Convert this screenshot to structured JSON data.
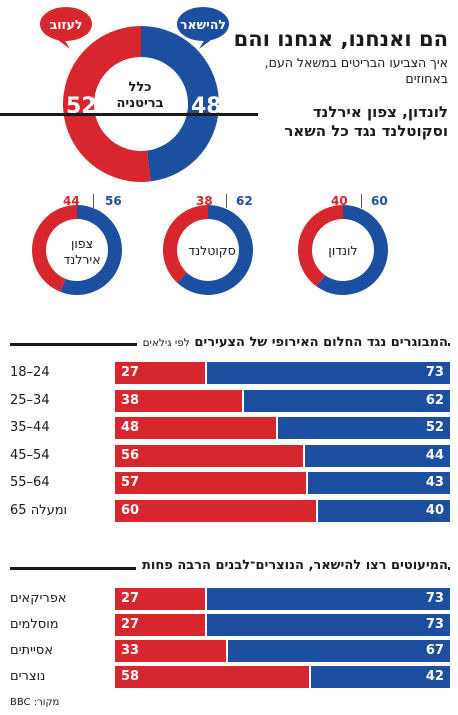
{
  "header": {
    "title": "הם ואנחנו, אנחנו והם",
    "subtitle": "איך הצביעו הבריטים במשאל העם, באחוזים"
  },
  "colors": {
    "stay": "#1d4fa0",
    "leave": "#d8262e"
  },
  "bubbles": {
    "stay_label": "להישאר",
    "leave_label": "לעזוב"
  },
  "sections": {
    "regions_title": "לונדון, צפון אירלנד וסקוטלנד נגד כל השאר",
    "age_title": "המבוגרים נגד החלום האירופי של הצעירים",
    "age_title_small": "לפי גילאים",
    "minority_title": "המיעוטים רצו להישאר, הנוצרים־לבנים הרבה פחות"
  },
  "source": "מקור: BBC",
  "chart_data": [
    {
      "type": "pie",
      "label": "כלל בריטניה",
      "label_lines": [
        "כלל",
        "בריטניה"
      ],
      "stay": 48,
      "leave": 52
    },
    {
      "type": "pie",
      "rings": [
        {
          "label_lines": [
            "לונדון"
          ],
          "stay": 60,
          "leave": 40
        },
        {
          "label_lines": [
            "סקוטלנד"
          ],
          "stay": 62,
          "leave": 38
        },
        {
          "label_lines": [
            "צפון",
            "אירלנד"
          ],
          "stay": 56,
          "leave": 44
        }
      ]
    },
    {
      "type": "bar",
      "stacked": true,
      "orientation": "horizontal",
      "categories": [
        "18–24",
        "25–34",
        "35–44",
        "45–54",
        "55–64",
        "65 ומעלה"
      ],
      "series": [
        {
          "name": "להישאר",
          "values": [
            73,
            62,
            52,
            44,
            43,
            40
          ]
        },
        {
          "name": "לעזוב",
          "values": [
            27,
            38,
            48,
            56,
            57,
            60
          ]
        }
      ]
    },
    {
      "type": "bar",
      "stacked": true,
      "orientation": "horizontal",
      "categories": [
        "אפריקאים",
        "מוסלמים",
        "אסייתים",
        "נוצרים"
      ],
      "series": [
        {
          "name": "להישאר",
          "values": [
            73,
            73,
            67,
            42
          ]
        },
        {
          "name": "לעזוב",
          "values": [
            27,
            27,
            33,
            58
          ]
        }
      ]
    }
  ]
}
